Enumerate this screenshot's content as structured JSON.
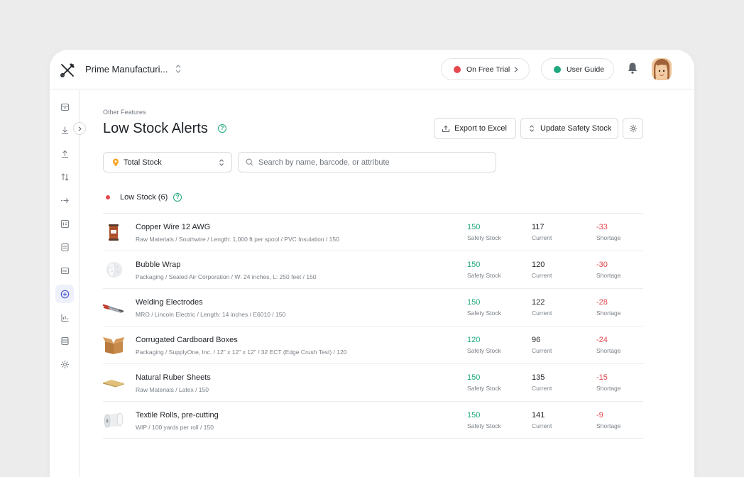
{
  "header": {
    "org_name": "Prime Manufacturi...",
    "trial_label": "On Free Trial",
    "guide_label": "User Guide"
  },
  "page": {
    "breadcrumb": "Other Features",
    "title": "Low Stock Alerts",
    "export_label": "Export to Excel",
    "update_label": "Update Safety Stock"
  },
  "filters": {
    "stock_select": "Total Stock",
    "search_placeholder": "Search by name, barcode, or attribute"
  },
  "section": {
    "label": "Low Stock (6)"
  },
  "labels": {
    "safety": "Safety Stock",
    "current": "Current",
    "shortage": "Shortage"
  },
  "items": [
    {
      "name": "Copper Wire 12 AWG",
      "desc": "Raw Materials / Southwire / Length: 1,000 ft per spool / PVC Insulation / 150",
      "safety": "150",
      "current": "117",
      "shortage": "-33",
      "icon": "copper-spool"
    },
    {
      "name": "Bubble Wrap",
      "desc": "Packaging / Sealed Air Corporation / W: 24 inches, L: 250 feet / 150",
      "safety": "150",
      "current": "120",
      "shortage": "-30",
      "icon": "bubble-roll"
    },
    {
      "name": "Welding Electrodes",
      "desc": "MRO / Lincoln Electric / Length: 14 inches / E6010 / 150",
      "safety": "150",
      "current": "122",
      "shortage": "-28",
      "icon": "electrodes"
    },
    {
      "name": "Corrugated Cardboard Boxes",
      "desc": "Packaging / SupplyOne, Inc. / 12\" x 12\" x 12\" / 32 ECT (Edge Crush Test) / 120",
      "safety": "120",
      "current": "96",
      "shortage": "-24",
      "icon": "cardboard-box"
    },
    {
      "name": "Natural Ruber Sheets",
      "desc": "Raw Materials / Latex / 150",
      "safety": "150",
      "current": "135",
      "shortage": "-15",
      "icon": "rubber-sheet"
    },
    {
      "name": "Textile Rolls, pre-cutting",
      "desc": "WIP / 100 yards per roll / 150",
      "safety": "150",
      "current": "141",
      "shortage": "-9",
      "icon": "textile-roll"
    }
  ],
  "colors": {
    "accent_green": "#1ea87d",
    "alert_red": "#e5484d",
    "pin_orange": "#f5a524"
  }
}
